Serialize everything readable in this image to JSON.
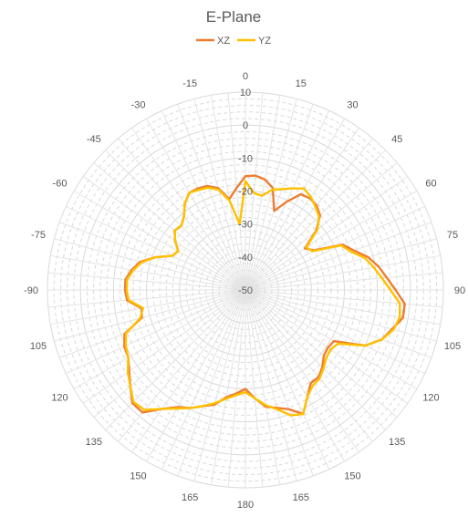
{
  "chart_data": {
    "type": "radar",
    "title": "E-Plane",
    "legend_position": "top",
    "angle_ticks": [
      0,
      15,
      30,
      45,
      60,
      75,
      90,
      105,
      120,
      135,
      150,
      165,
      180,
      -165,
      -150,
      -135,
      -120,
      -105,
      -90,
      -75,
      -60,
      -45,
      -30,
      -15
    ],
    "angle_labels": [
      "0",
      "15",
      "30",
      "45",
      "60",
      "75",
      "90",
      "105",
      "120",
      "135",
      "150",
      "165",
      "180",
      "165",
      "150",
      "135",
      "120",
      "105",
      "-90",
      "-75",
      "-60",
      "-45",
      "-30",
      "-15"
    ],
    "radial_ticks": [
      10,
      0,
      -10,
      -20,
      -30,
      -40,
      -50
    ],
    "radial_range": [
      -50,
      10
    ],
    "grid": true,
    "angle_step": 5,
    "series": [
      {
        "name": "XZ",
        "color": "#ED7D31",
        "values": [
          -15.5,
          -15.2,
          -16.0,
          -18.0,
          -24.5,
          -20.5,
          -16.5,
          -16.0,
          -16.5,
          -18.0,
          -22.0,
          -28.0,
          -26.0,
          -17.5,
          -15.0,
          -11.5,
          -9.0,
          -7.0,
          -4.5,
          -1.5,
          -1.5,
          -4.0,
          -6.0,
          -10.0,
          -19.0,
          -19.5,
          -19.0,
          -17.0,
          -15.5,
          -15.5,
          -12.5,
          -8.5,
          -11.5,
          -13.0,
          -14.0,
          -17.0,
          -20.0,
          -18.5,
          -17.0,
          -14.0,
          -12.5,
          -10.5,
          -9.0,
          -6.0,
          -1.5,
          -1.5,
          -4.5,
          -7.0,
          -9.0,
          -9.5,
          -11.0,
          -17.5,
          -18.0,
          -14.0,
          -13.5,
          -13.5,
          -15.0,
          -17.0,
          -21.0,
          -25.5,
          -26.5,
          -24.0,
          -22.0,
          -22.5,
          -21.0,
          -18.0,
          -16.0,
          -16.0,
          -16.5,
          -18.0,
          -22.0,
          -19.0
        ]
      },
      {
        "name": "YZ",
        "color": "#FFC000",
        "values": [
          -17.0,
          -20.5,
          -21.0,
          -18.5,
          -17.5,
          -16.0,
          -14.5,
          -15.5,
          -17.0,
          -18.5,
          -21.5,
          -27.5,
          -26.5,
          -18.0,
          -16.0,
          -12.5,
          -10.5,
          -8.5,
          -6.0,
          -3.0,
          -2.5,
          -3.5,
          -6.0,
          -10.0,
          -17.5,
          -18.5,
          -18.0,
          -16.5,
          -15.0,
          -14.5,
          -12.5,
          -8.5,
          -9.5,
          -12.5,
          -14.5,
          -17.0,
          -19.0,
          -18.0,
          -16.5,
          -14.5,
          -12.5,
          -10.5,
          -8.5,
          -6.0,
          -2.5,
          -2.0,
          -4.5,
          -6.5,
          -9.0,
          -10.0,
          -11.5,
          -17.0,
          -18.5,
          -14.5,
          -14.0,
          -14.0,
          -15.5,
          -17.5,
          -21.0,
          -25.5,
          -26.5,
          -24.0,
          -22.0,
          -22.5,
          -21.0,
          -18.0,
          -16.0,
          -16.5,
          -17.0,
          -18.5,
          -22.5,
          -30.0
        ]
      }
    ]
  }
}
